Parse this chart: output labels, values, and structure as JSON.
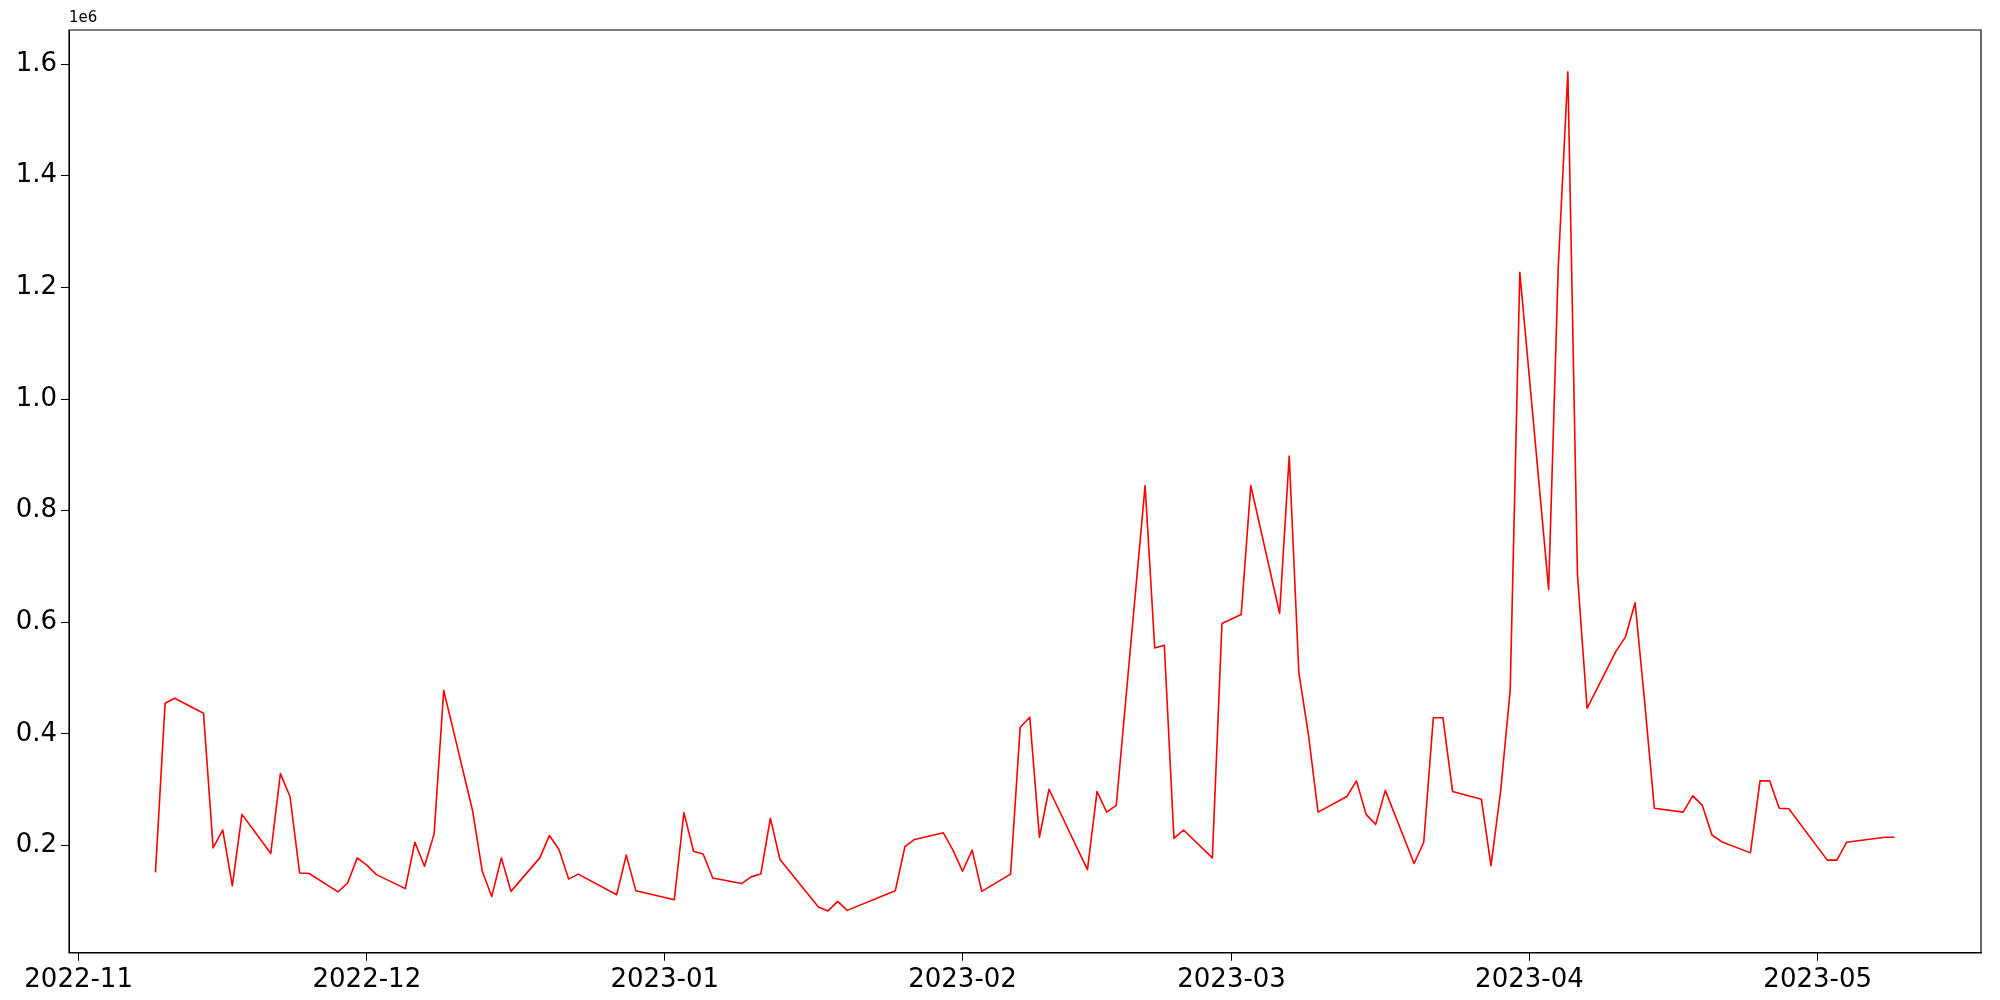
{
  "chart_data": {
    "type": "line",
    "annotations": [
      "1e6"
    ],
    "x": [
      "2022-11-09",
      "2022-11-10",
      "2022-11-11",
      "2022-11-14",
      "2022-11-15",
      "2022-11-16",
      "2022-11-17",
      "2022-11-18",
      "2022-11-21",
      "2022-11-22",
      "2022-11-23",
      "2022-11-24",
      "2022-11-25",
      "2022-11-28",
      "2022-11-29",
      "2022-11-30",
      "2022-12-01",
      "2022-12-02",
      "2022-12-05",
      "2022-12-06",
      "2022-12-07",
      "2022-12-08",
      "2022-12-09",
      "2022-12-12",
      "2022-12-13",
      "2022-12-14",
      "2022-12-15",
      "2022-12-16",
      "2022-12-19",
      "2022-12-20",
      "2022-12-21",
      "2022-12-22",
      "2022-12-23",
      "2022-12-27",
      "2022-12-28",
      "2022-12-29",
      "2023-01-02",
      "2023-01-03",
      "2023-01-04",
      "2023-01-05",
      "2023-01-06",
      "2023-01-09",
      "2023-01-10",
      "2023-01-11",
      "2023-01-12",
      "2023-01-13",
      "2023-01-17",
      "2023-01-18",
      "2023-01-19",
      "2023-01-20",
      "2023-01-25",
      "2023-01-26",
      "2023-01-27",
      "2023-01-30",
      "2023-01-31",
      "2023-02-01",
      "2023-02-02",
      "2023-02-03",
      "2023-02-06",
      "2023-02-07",
      "2023-02-08",
      "2023-02-09",
      "2023-02-10",
      "2023-02-14",
      "2023-02-15",
      "2023-02-16",
      "2023-02-17",
      "2023-02-20",
      "2023-02-21",
      "2023-02-22",
      "2023-02-23",
      "2023-02-24",
      "2023-02-27",
      "2023-02-28",
      "2023-03-02",
      "2023-03-03",
      "2023-03-06",
      "2023-03-07",
      "2023-03-08",
      "2023-03-09",
      "2023-03-10",
      "2023-03-13",
      "2023-03-14",
      "2023-03-15",
      "2023-03-16",
      "2023-03-17",
      "2023-03-20",
      "2023-03-21",
      "2023-03-22",
      "2023-03-23",
      "2023-03-24",
      "2023-03-27",
      "2023-03-28",
      "2023-03-29",
      "2023-03-30",
      "2023-03-31",
      "2023-04-03",
      "2023-04-04",
      "2023-04-05",
      "2023-04-06",
      "2023-04-07",
      "2023-04-10",
      "2023-04-11",
      "2023-04-12",
      "2023-04-13",
      "2023-04-14",
      "2023-04-17",
      "2023-04-18",
      "2023-04-19",
      "2023-04-20",
      "2023-04-21",
      "2023-04-24",
      "2023-04-25",
      "2023-04-26",
      "2023-04-27",
      "2023-04-28",
      "2023-05-02",
      "2023-05-03",
      "2023-05-04",
      "2023-05-08",
      "2023-05-09"
    ],
    "series": [
      {
        "color": "#ff0000",
        "values": [
          0.152,
          0.455,
          0.464,
          0.437,
          0.196,
          0.228,
          0.128,
          0.256,
          0.186,
          0.329,
          0.288,
          0.151,
          0.15,
          0.117,
          0.133,
          0.178,
          0.165,
          0.148,
          0.123,
          0.206,
          0.163,
          0.221,
          0.478,
          0.263,
          0.155,
          0.109,
          0.178,
          0.118,
          0.178,
          0.218,
          0.193,
          0.14,
          0.149,
          0.112,
          0.183,
          0.119,
          0.103,
          0.259,
          0.19,
          0.185,
          0.142,
          0.132,
          0.144,
          0.149,
          0.249,
          0.175,
          0.09,
          0.083,
          0.1,
          0.084,
          0.119,
          0.198,
          0.211,
          0.223,
          0.192,
          0.154,
          0.192,
          0.118,
          0.149,
          0.412,
          0.43,
          0.215,
          0.301,
          0.157,
          0.297,
          0.26,
          0.272,
          0.845,
          0.554,
          0.559,
          0.213,
          0.228,
          0.178,
          0.598,
          0.614,
          0.845,
          0.616,
          0.898,
          0.51,
          0.399,
          0.26,
          0.288,
          0.316,
          0.256,
          0.238,
          0.299,
          0.168,
          0.206,
          0.429,
          0.429,
          0.297,
          0.283,
          0.164,
          0.297,
          0.479,
          1.227,
          0.659,
          1.236,
          1.586,
          0.685,
          0.446,
          0.548,
          0.574,
          0.635,
          0.456,
          0.267,
          0.26,
          0.289,
          0.272,
          0.219,
          0.207,
          0.187,
          0.316,
          0.316,
          0.267,
          0.266,
          0.174,
          0.174,
          0.206,
          0.215,
          0.215
        ]
      }
    ],
    "xlim": [
      "2022-10-31",
      "2023-05-18"
    ],
    "xticks": [
      {
        "value": "2022-11-01",
        "label": "2022-11"
      },
      {
        "value": "2022-12-01",
        "label": "2022-12"
      },
      {
        "value": "2023-01-01",
        "label": "2023-01"
      },
      {
        "value": "2023-02-01",
        "label": "2023-02"
      },
      {
        "value": "2023-03-01",
        "label": "2023-03"
      },
      {
        "value": "2023-04-01",
        "label": "2023-04"
      },
      {
        "value": "2023-05-01",
        "label": "2023-05"
      }
    ],
    "ylim": [
      0.008,
      1.661
    ],
    "yticks": [
      0.2,
      0.4,
      0.6,
      0.8,
      {
        "value": 1,
        "label": "1.0"
      },
      1.2,
      1.4,
      1.6
    ]
  }
}
